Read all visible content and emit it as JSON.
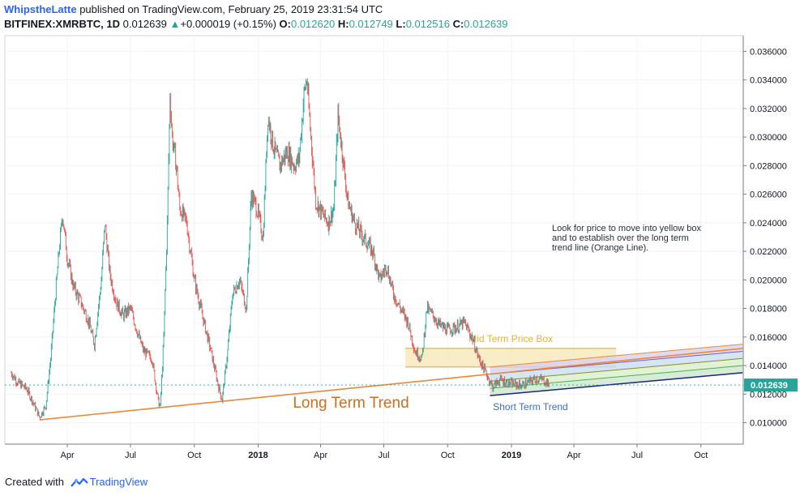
{
  "header": {
    "author": "WhipstheLatte",
    "published_text": "published on TradingView.com, February 25, 2019 23:31:54 UTC",
    "symbol": "BITFINEX:XMRBTC, 1D",
    "last_price": "0.012639",
    "change_arrow": "▲",
    "change": "+0.000019 (+0.15%)",
    "open_label": "O:",
    "open": "0.012620",
    "high_label": "H:",
    "high": "0.012749",
    "low_label": "L:",
    "low": "0.012516",
    "close_label": "C:",
    "close": "0.012639"
  },
  "footer": {
    "created_with": "Created with",
    "brand": "TradingView"
  },
  "colors": {
    "up": "#26a69a",
    "down": "#ef5350",
    "long_trend": "#e8893a",
    "mid_box": "#f7e7b4",
    "short_trend_text": "#3d6fc4",
    "price_label": "#26a69a",
    "grid": "#f0f3fa"
  },
  "chart_data": {
    "type": "line",
    "title": "BITFINEX:XMRBTC, 1D",
    "xlabel": "",
    "ylabel": "",
    "ylim": [
      0.0085,
      0.0371
    ],
    "y_ticks": [
      "0.010000",
      "0.012000",
      "0.014000",
      "0.016000",
      "0.018000",
      "0.020000",
      "0.022000",
      "0.024000",
      "0.026000",
      "0.028000",
      "0.030000",
      "0.032000",
      "0.034000",
      "0.036000"
    ],
    "x_ticks": [
      {
        "date": "2017-04-01",
        "label": "Apr",
        "bold": false
      },
      {
        "date": "2017-07-01",
        "label": "Jul",
        "bold": false
      },
      {
        "date": "2017-10-01",
        "label": "Oct",
        "bold": false
      },
      {
        "date": "2018-01-01",
        "label": "2018",
        "bold": true
      },
      {
        "date": "2018-04-01",
        "label": "Apr",
        "bold": false
      },
      {
        "date": "2018-07-01",
        "label": "Jul",
        "bold": false
      },
      {
        "date": "2018-10-01",
        "label": "Oct",
        "bold": false
      },
      {
        "date": "2019-01-01",
        "label": "2019",
        "bold": true
      },
      {
        "date": "2019-04-01",
        "label": "Apr",
        "bold": false
      },
      {
        "date": "2019-07-01",
        "label": "Jul",
        "bold": false
      },
      {
        "date": "2019-10-01",
        "label": "Oct",
        "bold": false
      }
    ],
    "series": [
      {
        "name": "XMRBTC",
        "points": [
          [
            "2017-01-10",
            0.0135
          ],
          [
            "2017-01-20",
            0.0128
          ],
          [
            "2017-02-01",
            0.0124
          ],
          [
            "2017-02-10",
            0.0115
          ],
          [
            "2017-02-20",
            0.0104
          ],
          [
            "2017-03-01",
            0.0112
          ],
          [
            "2017-03-08",
            0.0145
          ],
          [
            "2017-03-15",
            0.019
          ],
          [
            "2017-03-20",
            0.022
          ],
          [
            "2017-03-25",
            0.0246
          ],
          [
            "2017-04-01",
            0.0215
          ],
          [
            "2017-04-10",
            0.0195
          ],
          [
            "2017-04-20",
            0.0185
          ],
          [
            "2017-05-01",
            0.0172
          ],
          [
            "2017-05-10",
            0.0155
          ],
          [
            "2017-05-20",
            0.02
          ],
          [
            "2017-05-25",
            0.024
          ],
          [
            "2017-06-01",
            0.0205
          ],
          [
            "2017-06-10",
            0.0185
          ],
          [
            "2017-06-20",
            0.0175
          ],
          [
            "2017-07-01",
            0.018
          ],
          [
            "2017-07-10",
            0.0165
          ],
          [
            "2017-07-20",
            0.015
          ],
          [
            "2017-08-01",
            0.0145
          ],
          [
            "2017-08-10",
            0.0115
          ],
          [
            "2017-08-13",
            0.0111
          ],
          [
            "2017-08-18",
            0.016
          ],
          [
            "2017-08-23",
            0.024
          ],
          [
            "2017-08-27",
            0.033
          ],
          [
            "2017-08-30",
            0.03
          ],
          [
            "2017-09-05",
            0.028
          ],
          [
            "2017-09-10",
            0.025
          ],
          [
            "2017-09-20",
            0.024
          ],
          [
            "2017-10-01",
            0.02
          ],
          [
            "2017-10-15",
            0.017
          ],
          [
            "2017-10-25",
            0.015
          ],
          [
            "2017-11-05",
            0.0125
          ],
          [
            "2017-11-10",
            0.0116
          ],
          [
            "2017-11-18",
            0.015
          ],
          [
            "2017-11-25",
            0.019
          ],
          [
            "2017-12-05",
            0.02
          ],
          [
            "2017-12-15",
            0.018
          ],
          [
            "2017-12-22",
            0.026
          ],
          [
            "2017-12-30",
            0.025
          ],
          [
            "2018-01-08",
            0.023
          ],
          [
            "2018-01-15",
            0.0315
          ],
          [
            "2018-01-22",
            0.0295
          ],
          [
            "2018-02-01",
            0.028
          ],
          [
            "2018-02-12",
            0.029
          ],
          [
            "2018-02-22",
            0.028
          ],
          [
            "2018-03-01",
            0.0285
          ],
          [
            "2018-03-08",
            0.033
          ],
          [
            "2018-03-12",
            0.034
          ],
          [
            "2018-03-18",
            0.03
          ],
          [
            "2018-03-25",
            0.0255
          ],
          [
            "2018-04-05",
            0.0245
          ],
          [
            "2018-04-12",
            0.024
          ],
          [
            "2018-04-20",
            0.025
          ],
          [
            "2018-04-26",
            0.0315
          ],
          [
            "2018-05-02",
            0.029
          ],
          [
            "2018-05-10",
            0.0255
          ],
          [
            "2018-05-20",
            0.024
          ],
          [
            "2018-06-01",
            0.023
          ],
          [
            "2018-06-15",
            0.022
          ],
          [
            "2018-06-25",
            0.02
          ],
          [
            "2018-07-05",
            0.021
          ],
          [
            "2018-07-15",
            0.019
          ],
          [
            "2018-07-25",
            0.018
          ],
          [
            "2018-08-05",
            0.017
          ],
          [
            "2018-08-15",
            0.015
          ],
          [
            "2018-08-25",
            0.0145
          ],
          [
            "2018-09-01",
            0.018
          ],
          [
            "2018-09-10",
            0.0175
          ],
          [
            "2018-09-20",
            0.0168
          ],
          [
            "2018-10-01",
            0.0165
          ],
          [
            "2018-10-15",
            0.0167
          ],
          [
            "2018-10-25",
            0.017
          ],
          [
            "2018-11-05",
            0.016
          ],
          [
            "2018-11-15",
            0.0145
          ],
          [
            "2018-11-25",
            0.0135
          ],
          [
            "2018-12-05",
            0.0125
          ],
          [
            "2018-12-15",
            0.013
          ],
          [
            "2018-12-25",
            0.0128
          ],
          [
            "2019-01-05",
            0.0127
          ],
          [
            "2019-01-15",
            0.0126
          ],
          [
            "2019-01-25",
            0.0128
          ],
          [
            "2019-02-05",
            0.0131
          ],
          [
            "2019-02-15",
            0.013
          ],
          [
            "2019-02-25",
            0.012639
          ]
        ]
      }
    ],
    "current_price": {
      "value": 0.012639,
      "label": "0.012639"
    },
    "annotations": [
      {
        "id": "long-term-trend",
        "kind": "trendline",
        "label": "Long Term Trend",
        "from": [
          "2017-02-20",
          0.0102
        ],
        "to": [
          "2019-11-30",
          0.0152
        ]
      },
      {
        "id": "mid-term-box",
        "kind": "rectangle",
        "label": "Mid Term Price Box",
        "from": [
          "2018-08-01",
          0.0152
        ],
        "to": [
          "2019-06-01",
          0.0139
        ]
      },
      {
        "id": "short-term-trend",
        "kind": "channel",
        "label": "Short Term Trend",
        "from": [
          "2018-12-01",
          0.0119
        ],
        "to": [
          "2019-11-30",
          0.0135
        ],
        "width": 0.002
      },
      {
        "id": "note",
        "kind": "text",
        "lines": [
          "Look for price to move into yellow box",
          "and to establish over the long term",
          "trend line (Orange Line)."
        ]
      }
    ]
  }
}
